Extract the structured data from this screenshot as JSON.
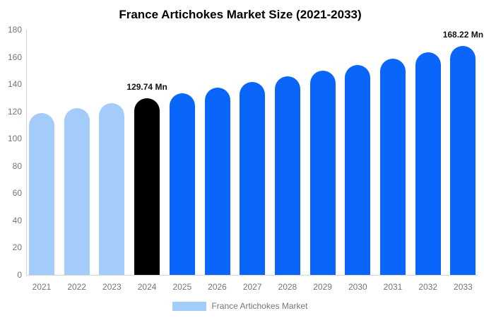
{
  "chart_data": {
    "type": "bar",
    "title": "France Artichokes Market Size (2021-2033)",
    "categories": [
      "2021",
      "2022",
      "2023",
      "2024",
      "2025",
      "2026",
      "2027",
      "2028",
      "2029",
      "2030",
      "2031",
      "2032",
      "2033"
    ],
    "values": [
      118.97,
      122.46,
      126.05,
      129.74,
      133.54,
      137.45,
      141.47,
      145.62,
      149.88,
      154.27,
      158.79,
      163.44,
      168.22
    ],
    "bar_colors": [
      "#A4CCFA",
      "#A4CCFA",
      "#A4CCFA",
      "#000000",
      "#0A66FA",
      "#0A66FA",
      "#0A66FA",
      "#0A66FA",
      "#0A66FA",
      "#0A66FA",
      "#0A66FA",
      "#0A66FA",
      "#0A66FA"
    ],
    "annotations": [
      {
        "index": 3,
        "category": "2024",
        "text": "129.74 Mn"
      },
      {
        "index": 12,
        "category": "2033",
        "text": "168.22 Mn"
      }
    ],
    "xlabel": "",
    "ylabel": "",
    "ylim": [
      0,
      180
    ],
    "yticks": [
      0,
      20,
      40,
      60,
      80,
      100,
      120,
      140,
      160,
      180
    ],
    "grid": false,
    "legend": {
      "position": "bottom",
      "items": [
        {
          "label": "France Artichokes Market",
          "color": "#A4CCFA"
        }
      ]
    }
  },
  "colors": {
    "background": "#FFFFFF",
    "axis_line": "#D6D6D6",
    "tick_text": "#757575",
    "annotation_text": "#111111",
    "title_text": "#000000"
  }
}
